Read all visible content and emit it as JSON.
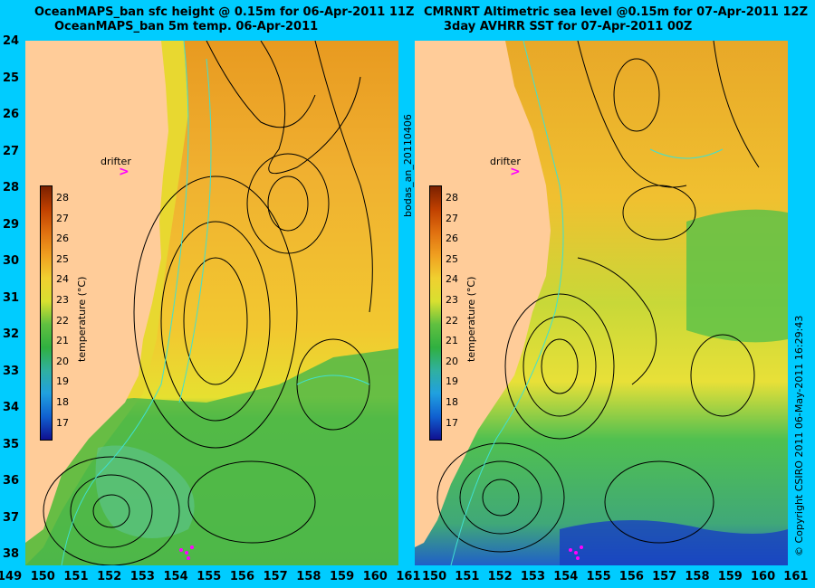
{
  "left_panel": {
    "title_line1": "OceanMAPS_ban sfc height @ 0.15m for 06-Apr-2011 11Z",
    "title_line2": "OceanMAPS_ban 5m temp. 06-Apr-2011",
    "side_label": "bodas_an_20110406",
    "drifter_label": "drifter",
    "drifter_marker": ">"
  },
  "right_panel": {
    "title_line1": "CMRNRT Altimetric sea level  @0.15m  for 07-Apr-2011 12Z",
    "title_line2": "3day AVHRR SST for 07-Apr-2011 00Z",
    "drifter_label": "drifter",
    "drifter_marker": ">"
  },
  "colorbar": {
    "label": "temperature (°C)",
    "ticks": [
      "28",
      "27",
      "26",
      "25",
      "24",
      "23",
      "22",
      "21",
      "20",
      "19",
      "18",
      "17"
    ]
  },
  "y_ticks": [
    "24",
    "25",
    "26",
    "27",
    "28",
    "29",
    "30",
    "31",
    "32",
    "33",
    "34",
    "35",
    "36",
    "37",
    "38"
  ],
  "x_ticks_left": [
    "149",
    "150",
    "151",
    "152",
    "153",
    "154",
    "155",
    "156",
    "157",
    "158",
    "159",
    "160",
    "161"
  ],
  "x_ticks_right": [
    "150",
    "151",
    "152",
    "153",
    "154",
    "155",
    "156",
    "157",
    "158",
    "159",
    "160",
    "161"
  ],
  "copyright": "© Copyright CSIRO 2011   06-May-2011 16:29:43",
  "colors": {
    "background": "#00ccff",
    "land": "#ffcc99",
    "contour": "#000000",
    "isobath": "#40e0d0",
    "drifter": "#ff00ff"
  }
}
